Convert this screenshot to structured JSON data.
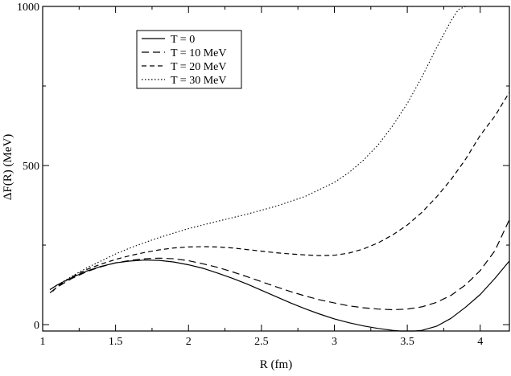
{
  "chart_data": {
    "type": "line",
    "title": "",
    "xlabel": "R (fm)",
    "ylabel": "ΔF(R)  (MeV)",
    "xlim": [
      1.0,
      4.2
    ],
    "ylim": [
      -20,
      1000
    ],
    "x_ticks": [
      1,
      1.5,
      2,
      2.5,
      3,
      3.5,
      4
    ],
    "x_tick_labels": [
      "1",
      "1.5",
      "2",
      "2.5",
      "3",
      "3.5",
      "4"
    ],
    "y_ticks": [
      0,
      500,
      1000
    ],
    "y_tick_labels": [
      "0",
      "500",
      "1000"
    ],
    "grid": false,
    "legend_position": "top-left",
    "series": [
      {
        "name": "T = 0",
        "dash": "solid",
        "x": [
          1.05,
          1.1,
          1.2,
          1.3,
          1.4,
          1.5,
          1.6,
          1.7,
          1.8,
          1.9,
          2.0,
          2.1,
          2.2,
          2.3,
          2.4,
          2.5,
          2.6,
          2.7,
          2.8,
          2.9,
          3.0,
          3.1,
          3.2,
          3.3,
          3.4,
          3.45,
          3.5,
          3.55,
          3.6,
          3.7,
          3.8,
          3.9,
          4.0,
          4.1,
          4.2
        ],
        "y": [
          110,
          125,
          148,
          168,
          183,
          194,
          200,
          203,
          202,
          197,
          188,
          177,
          162,
          146,
          128,
          108,
          88,
          68,
          50,
          33,
          18,
          6,
          -4,
          -12,
          -18,
          -20,
          -20,
          -20,
          -18,
          -5,
          20,
          55,
          95,
          145,
          200
        ]
      },
      {
        "name": "T = 10 MeV",
        "dash": "long-dash",
        "x": [
          1.05,
          1.1,
          1.2,
          1.3,
          1.4,
          1.5,
          1.6,
          1.7,
          1.8,
          1.9,
          2.0,
          2.1,
          2.2,
          2.3,
          2.4,
          2.5,
          2.6,
          2.7,
          2.8,
          2.9,
          3.0,
          3.1,
          3.2,
          3.3,
          3.4,
          3.5,
          3.6,
          3.7,
          3.8,
          3.9,
          4.0,
          4.1,
          4.2
        ],
        "y": [
          100,
          118,
          145,
          166,
          182,
          194,
          202,
          207,
          209,
          207,
          201,
          191,
          180,
          166,
          151,
          135,
          119,
          104,
          90,
          78,
          68,
          59,
          53,
          49,
          47,
          49,
          56,
          70,
          92,
          125,
          170,
          232,
          330
        ]
      },
      {
        "name": "T = 20 MeV",
        "dash": "short-dash",
        "x": [
          1.07,
          1.1,
          1.2,
          1.3,
          1.4,
          1.5,
          1.6,
          1.7,
          1.8,
          1.9,
          2.0,
          2.1,
          2.2,
          2.3,
          2.4,
          2.5,
          2.6,
          2.7,
          2.8,
          2.9,
          3.0,
          3.1,
          3.2,
          3.3,
          3.4,
          3.5,
          3.6,
          3.7,
          3.8,
          3.9,
          4.0,
          4.1,
          4.2
        ],
        "y": [
          105,
          120,
          150,
          173,
          190,
          205,
          217,
          227,
          235,
          241,
          244,
          245,
          244,
          241,
          236,
          231,
          226,
          222,
          219,
          217,
          218,
          225,
          238,
          257,
          282,
          313,
          353,
          401,
          456,
          520,
          595,
          655,
          730
        ]
      },
      {
        "name": "T = 30 MeV",
        "dash": "dotted",
        "x": [
          1.05,
          1.1,
          1.2,
          1.3,
          1.4,
          1.5,
          1.6,
          1.7,
          1.8,
          1.9,
          2.0,
          2.2,
          2.4,
          2.6,
          2.8,
          3.0,
          3.1,
          3.2,
          3.3,
          3.4,
          3.5,
          3.6,
          3.7,
          3.8,
          3.85,
          3.9
        ],
        "y": [
          110,
          124,
          152,
          178,
          200,
          222,
          241,
          258,
          274,
          288,
          302,
          325,
          347,
          372,
          403,
          447,
          478,
          517,
          565,
          625,
          695,
          778,
          870,
          955,
          990,
          1000
        ]
      }
    ]
  }
}
